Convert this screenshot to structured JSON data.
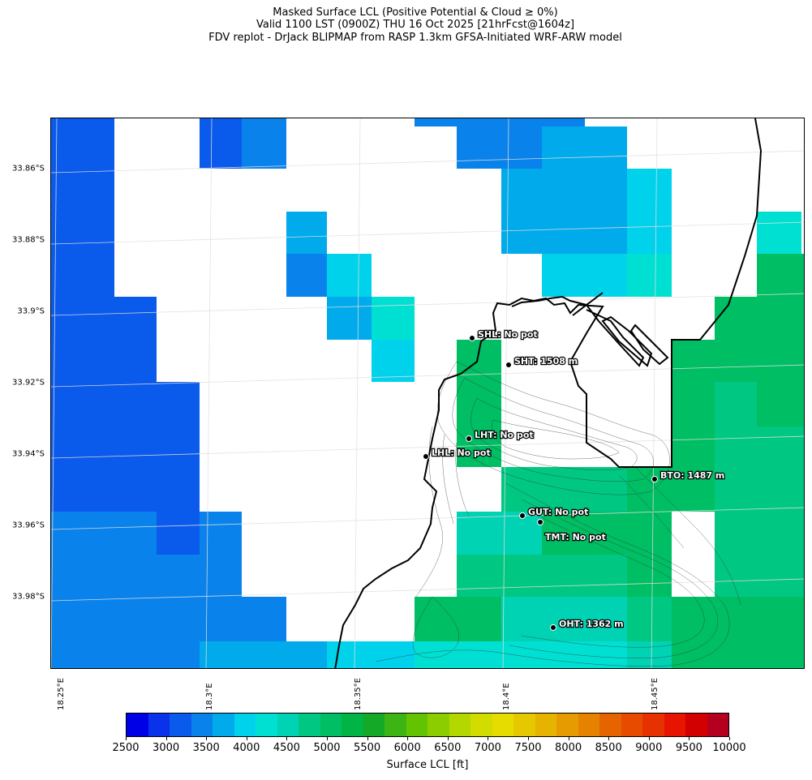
{
  "title": {
    "line1": "Masked Surface LCL (Positive Potential & Cloud ≥ 0%)",
    "line2": "Valid 1100 LST (0900Z) THU 16 Oct 2025 [21hrFcst@1604z]",
    "line3": "FDV replot - DrJack BLIPMAP from RASP 1.3km GFSA-Initiated WRF-ARW model"
  },
  "axes": {
    "lat_labels": [
      "33.86°S",
      "33.88°S",
      "33.9°S",
      "33.92°S",
      "33.94°S",
      "33.96°S",
      "33.98°S"
    ],
    "lon_labels": [
      "18.25°E",
      "18.3°E",
      "18.35°E",
      "18.4°E",
      "18.45°E"
    ]
  },
  "colorbar": {
    "label": "Surface LCL [ft]",
    "ticks": [
      "2500",
      "3000",
      "3500",
      "4000",
      "4500",
      "5000",
      "5500",
      "6000",
      "6500",
      "7000",
      "7500",
      "8000",
      "8500",
      "9000",
      "9500",
      "10000"
    ],
    "colors": [
      "#0000e6",
      "#0a32eb",
      "#0a5aeb",
      "#0a82eb",
      "#00aaeb",
      "#00d2eb",
      "#00e0d2",
      "#00d2b4",
      "#00c882",
      "#00be64",
      "#00b446",
      "#14aa28",
      "#3cb414",
      "#64c300",
      "#8ccd00",
      "#b4d700",
      "#d2dc00",
      "#e6dc00",
      "#e6c800",
      "#e6b400",
      "#e69b00",
      "#e68200",
      "#e66400",
      "#e64b00",
      "#e63200",
      "#e61400",
      "#d20000",
      "#b4001e"
    ]
  },
  "sites": [
    {
      "code": "SHL",
      "label": "SHL: No pot"
    },
    {
      "code": "SHT",
      "label": "SHT: 1508 m"
    },
    {
      "code": "LHT",
      "label": "LHT: No pot"
    },
    {
      "code": "LHL",
      "label": "LHL: No pot"
    },
    {
      "code": "BTO",
      "label": "BTO: 1487 m"
    },
    {
      "code": "GUT",
      "label": "GUT: No pot"
    },
    {
      "code": "TMT",
      "label": "TMT: No pot"
    },
    {
      "code": "OHT",
      "label": "OHT: 1362 m"
    }
  ]
}
